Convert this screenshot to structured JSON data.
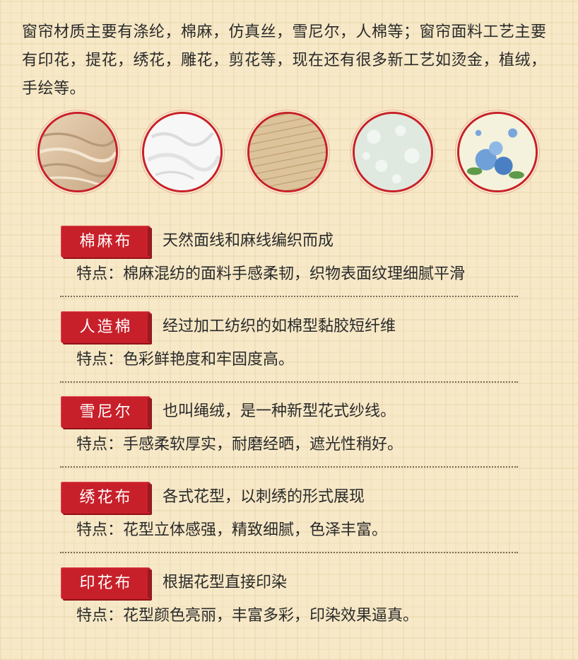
{
  "intro": "窗帘材质主要有涤纶，棉麻，仿真丝，雪尼尔，人棉等；窗帘面料工艺主要有印花，提花，绣花，雕花，剪花等，现在还有很多新工艺如烫金，植绒，手绘等。",
  "swatches": [
    {
      "icon": "linen-fabric-swatch"
    },
    {
      "icon": "white-cotton-swatch"
    },
    {
      "icon": "woven-texture-swatch"
    },
    {
      "icon": "embroidered-lace-swatch"
    },
    {
      "icon": "blue-floral-print-swatch"
    }
  ],
  "colors": {
    "accent": "#c8202a",
    "background": "#f7e9c8",
    "text": "#2a2a2a"
  },
  "items": [
    {
      "tag": "棉麻布",
      "desc": "天然面线和麻线编织而成",
      "feature": "特点：棉麻混纺的面料手感柔韧，织物表面纹理细腻平滑"
    },
    {
      "tag": "人造棉",
      "desc": "经过加工纺织的如棉型黏胶短纤维",
      "feature": "特点：色彩鲜艳度和牢固度高。"
    },
    {
      "tag": "雪尼尔",
      "desc": "也叫绳绒，是一种新型花式纱线。",
      "feature": "特点：手感柔软厚实，耐磨经晒，遮光性稍好。"
    },
    {
      "tag": "绣花布",
      "desc": "各式花型，以刺绣的形式展现",
      "feature": "特点：花型立体感强，精致细腻，色泽丰富。"
    },
    {
      "tag": "印花布",
      "desc": "根据花型直接印染",
      "feature": "特点：花型颜色亮丽，丰富多彩，印染效果逼真。"
    }
  ]
}
